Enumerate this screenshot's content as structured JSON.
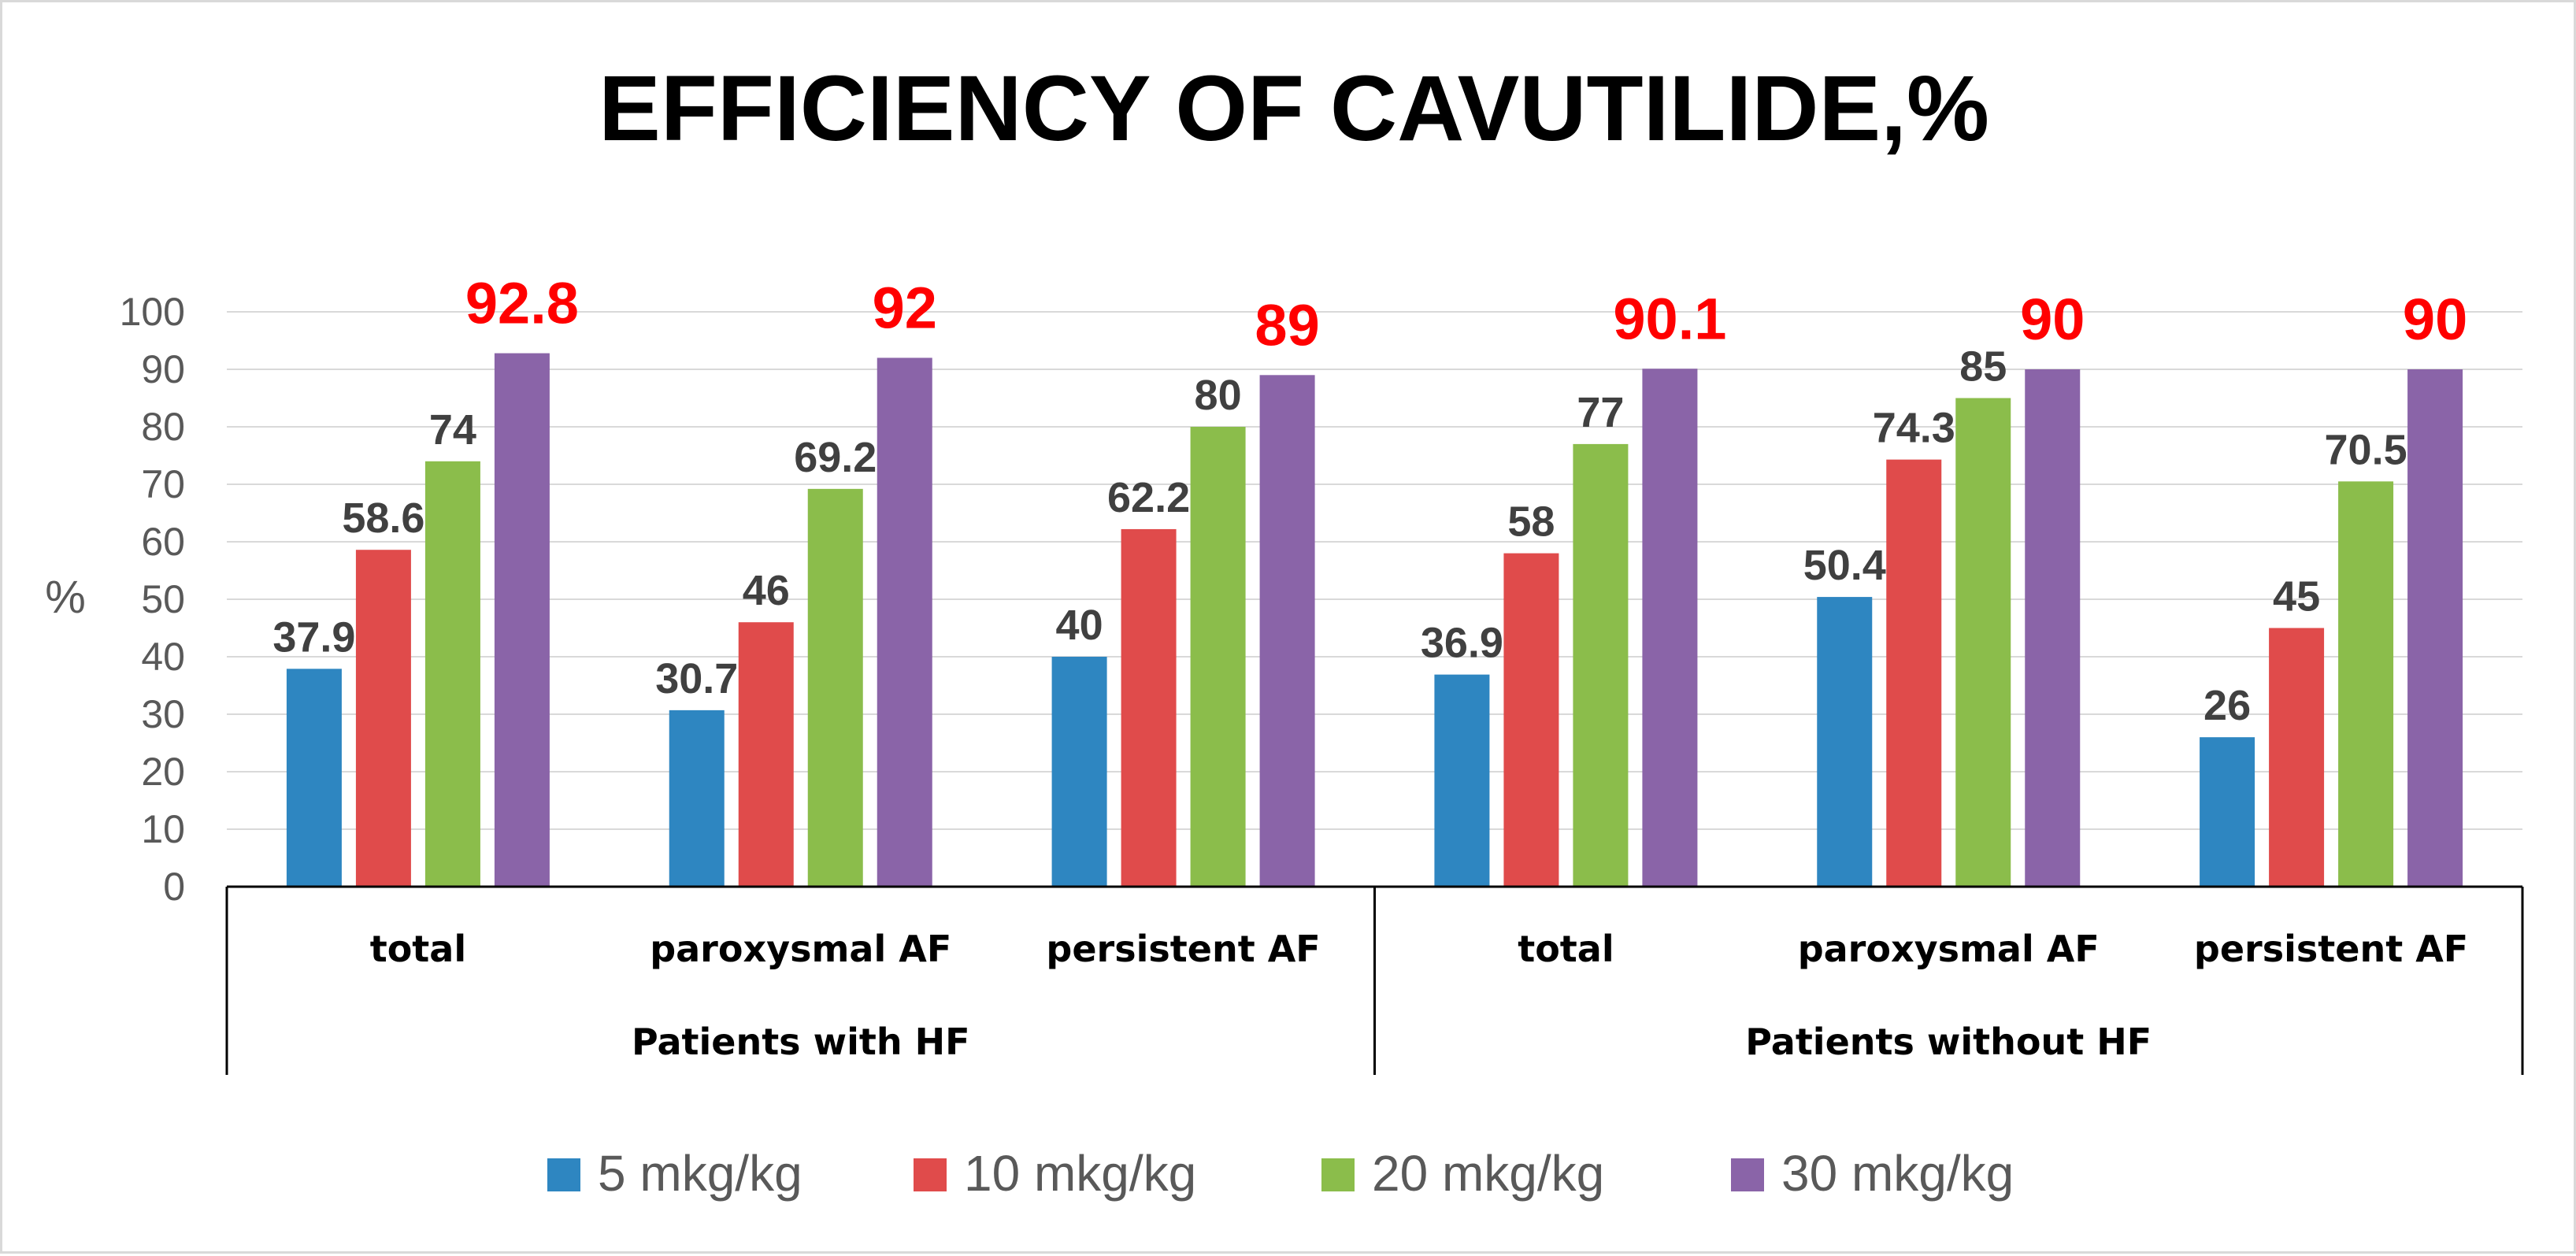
{
  "chart_data": {
    "type": "bar",
    "title": "EFFICIENCY OF CAVUTILIDE,%",
    "ylabel": "%",
    "xlabel": "",
    "ylim": [
      0,
      100
    ],
    "yticks": [
      0,
      10,
      20,
      30,
      40,
      50,
      60,
      70,
      80,
      90,
      100
    ],
    "grid": true,
    "legend_position": "bottom",
    "groups": [
      {
        "label": "Patients with HF",
        "categories": [
          "total",
          "paroxysmal AF",
          "persistent AF"
        ]
      },
      {
        "label": "Patients without HF",
        "categories": [
          "total",
          "paroxysmal AF",
          "persistent AF"
        ]
      }
    ],
    "categories": [
      "total",
      "paroxysmal AF",
      "persistent AF",
      "total",
      "paroxysmal AF",
      "persistent AF"
    ],
    "series": [
      {
        "name": "5 mkg/kg",
        "color": "#2e86c1",
        "label_color": "#404040",
        "values": [
          37.9,
          30.7,
          40,
          36.9,
          50.4,
          26
        ]
      },
      {
        "name": "10 mkg/kg",
        "color": "#e04b4b",
        "label_color": "#404040",
        "values": [
          58.6,
          46,
          62.2,
          58,
          74.3,
          45
        ]
      },
      {
        "name": "20 mkg/kg",
        "color": "#8bbd4b",
        "label_color": "#404040",
        "values": [
          74,
          69.2,
          80,
          77,
          85,
          70.5
        ]
      },
      {
        "name": "30 mkg/kg",
        "color": "#8a64a8",
        "label_color": "#ff0000",
        "values": [
          92.8,
          92,
          89,
          90.1,
          90,
          90
        ]
      }
    ]
  }
}
